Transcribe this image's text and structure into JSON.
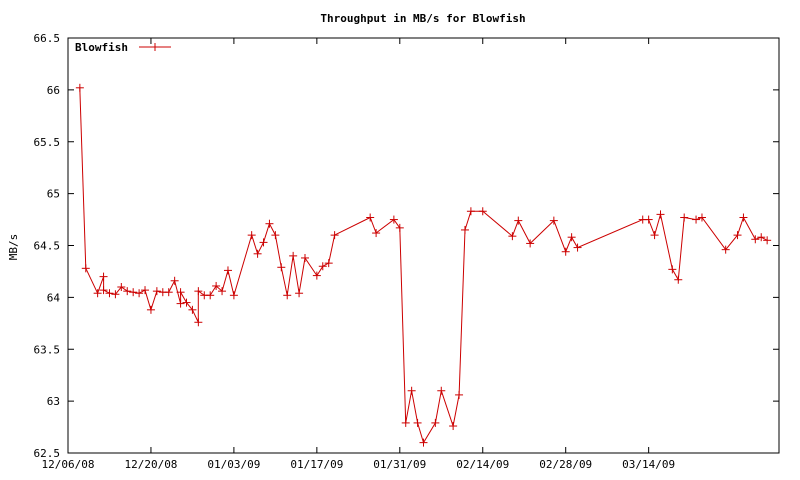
{
  "chart_data": {
    "type": "line",
    "title": "Throughput in MB/s for Blowfish",
    "xlabel": "",
    "ylabel": "MB/s",
    "ylim": [
      62.5,
      66.5
    ],
    "xlim": [
      "2008-12-06",
      "2009-04-05"
    ],
    "y_ticks": [
      62.5,
      63,
      63.5,
      64,
      64.5,
      65,
      65.5,
      66,
      66.5
    ],
    "y_tick_labels": [
      "62.5",
      "63",
      "63.5",
      "64",
      "64.5",
      "65",
      "65.5",
      "66",
      "66.5"
    ],
    "x_ticks": [
      "2008-12-06",
      "2008-12-20",
      "2009-01-03",
      "2009-01-17",
      "2009-01-31",
      "2009-02-14",
      "2009-02-28",
      "2009-03-14"
    ],
    "x_tick_labels": [
      "12/06/08",
      "12/20/08",
      "01/03/09",
      "01/17/09",
      "01/31/09",
      "02/14/09",
      "02/28/09",
      "03/14/09"
    ],
    "grid": false,
    "legend": {
      "position": "top-left"
    },
    "series": [
      {
        "name": "Blowfish",
        "color": "#cc0000",
        "marker": "plus",
        "points": [
          [
            "2008-12-08",
            66.02
          ],
          [
            "2008-12-09",
            64.28
          ],
          [
            "2008-12-11",
            64.04
          ],
          [
            "2008-12-12",
            64.2
          ],
          [
            "2008-12-12",
            64.07
          ],
          [
            "2008-12-13",
            64.04
          ],
          [
            "2008-12-14",
            64.03
          ],
          [
            "2008-12-15",
            64.1
          ],
          [
            "2008-12-16",
            64.06
          ],
          [
            "2008-12-17",
            64.05
          ],
          [
            "2008-12-18",
            64.04
          ],
          [
            "2008-12-19",
            64.07
          ],
          [
            "2008-12-20",
            63.88
          ],
          [
            "2008-12-21",
            64.06
          ],
          [
            "2008-12-22",
            64.05
          ],
          [
            "2008-12-23",
            64.05
          ],
          [
            "2008-12-24",
            64.16
          ],
          [
            "2008-12-25",
            63.94
          ],
          [
            "2008-12-25",
            64.05
          ],
          [
            "2008-12-26",
            63.95
          ],
          [
            "2008-12-27",
            63.88
          ],
          [
            "2008-12-28",
            63.76
          ],
          [
            "2008-12-28",
            64.06
          ],
          [
            "2008-12-29",
            64.02
          ],
          [
            "2008-12-30",
            64.02
          ],
          [
            "2008-12-31",
            64.11
          ],
          [
            "2009-01-01",
            64.06
          ],
          [
            "2009-01-02",
            64.26
          ],
          [
            "2009-01-03",
            64.02
          ],
          [
            "2009-01-06",
            64.6
          ],
          [
            "2009-01-07",
            64.42
          ],
          [
            "2009-01-08",
            64.53
          ],
          [
            "2009-01-09",
            64.71
          ],
          [
            "2009-01-10",
            64.6
          ],
          [
            "2009-01-11",
            64.29
          ],
          [
            "2009-01-12",
            64.02
          ],
          [
            "2009-01-13",
            64.4
          ],
          [
            "2009-01-14",
            64.04
          ],
          [
            "2009-01-15",
            64.38
          ],
          [
            "2009-01-17",
            64.21
          ],
          [
            "2009-01-18",
            64.3
          ],
          [
            "2009-01-19",
            64.33
          ],
          [
            "2009-01-20",
            64.6
          ],
          [
            "2009-01-26",
            64.77
          ],
          [
            "2009-01-27",
            64.62
          ],
          [
            "2009-01-30",
            64.75
          ],
          [
            "2009-01-31",
            64.67
          ],
          [
            "2009-02-01",
            62.79
          ],
          [
            "2009-02-02",
            63.1
          ],
          [
            "2009-02-03",
            62.79
          ],
          [
            "2009-02-04",
            62.6
          ],
          [
            "2009-02-06",
            62.79
          ],
          [
            "2009-02-07",
            63.1
          ],
          [
            "2009-02-09",
            62.76
          ],
          [
            "2009-02-10",
            63.06
          ],
          [
            "2009-02-11",
            64.65
          ],
          [
            "2009-02-12",
            64.83
          ],
          [
            "2009-02-14",
            64.83
          ],
          [
            "2009-02-19",
            64.59
          ],
          [
            "2009-02-20",
            64.74
          ],
          [
            "2009-02-22",
            64.52
          ],
          [
            "2009-02-26",
            64.74
          ],
          [
            "2009-02-28",
            64.44
          ],
          [
            "2009-03-01",
            64.58
          ],
          [
            "2009-03-02",
            64.48
          ],
          [
            "2009-03-13",
            64.75
          ],
          [
            "2009-03-14",
            64.75
          ],
          [
            "2009-03-15",
            64.6
          ],
          [
            "2009-03-16",
            64.8
          ],
          [
            "2009-03-18",
            64.27
          ],
          [
            "2009-03-19",
            64.17
          ],
          [
            "2009-03-20",
            64.77
          ],
          [
            "2009-03-22",
            64.75
          ],
          [
            "2009-03-23",
            64.77
          ],
          [
            "2009-03-27",
            64.46
          ],
          [
            "2009-03-29",
            64.6
          ],
          [
            "2009-03-30",
            64.77
          ],
          [
            "2009-04-01",
            64.56
          ],
          [
            "2009-04-02",
            64.58
          ],
          [
            "2009-04-03",
            64.55
          ]
        ]
      }
    ]
  }
}
